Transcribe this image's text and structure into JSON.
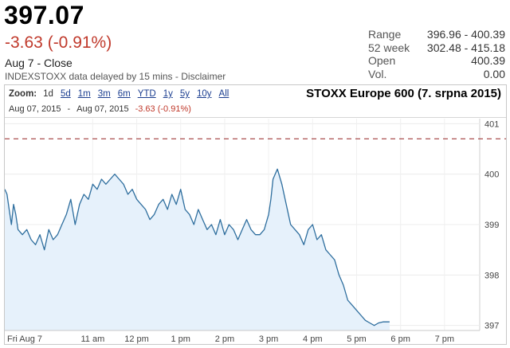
{
  "quote": {
    "price": "397.07",
    "change": "-3.63 (-0.91%)",
    "date_close": "Aug 7 - Close",
    "source": "INDEXSTOXX data delayed by 15 mins",
    "separator": " - ",
    "disclaimer": "Disclaimer"
  },
  "stats": [
    {
      "label": "Range",
      "value": "396.96 - 400.39"
    },
    {
      "label": "52 week",
      "value": "302.48 - 415.18"
    },
    {
      "label": "Open",
      "value": "400.39"
    },
    {
      "label": "Vol.",
      "value": "0.00"
    }
  ],
  "zoom": {
    "label": "Zoom:",
    "options": [
      "1d",
      "5d",
      "1m",
      "3m",
      "6m",
      "YTD",
      "1y",
      "5y",
      "10y",
      "All"
    ],
    "active": "1d"
  },
  "range": {
    "from": "Aug 07, 2015",
    "dash": "-",
    "to": "Aug 07, 2015",
    "change": "-3.63 (-0.91%)"
  },
  "colors": {
    "line": "#2e6e9e",
    "fill": "#e6f1fb",
    "prev_close": "#a03c3c",
    "negative": "#c0392b",
    "link": "#1a3d8f"
  },
  "chart_data": {
    "type": "area",
    "title": "STOXX Europe 600 (7. srpna 2015)",
    "x_tick_labels": [
      "Fri Aug 7",
      "11 am",
      "12 pm",
      "1 pm",
      "2 pm",
      "3 pm",
      "4 pm",
      "5 pm",
      "6 pm",
      "7 pm"
    ],
    "x_tick_hours": [
      10,
      11,
      12,
      13,
      14,
      15,
      16,
      17,
      18,
      19
    ],
    "y_ticks": [
      397,
      398,
      399,
      400,
      401
    ],
    "ylim": [
      396.9,
      401.1
    ],
    "xlim": [
      9.0,
      19.8
    ],
    "previous_close": 400.7,
    "series": [
      {
        "x": [
          9.0,
          9.05,
          9.1,
          9.15,
          9.2,
          9.25,
          9.3,
          9.4,
          9.5,
          9.6,
          9.7,
          9.8,
          9.9,
          10.0,
          10.1,
          10.2,
          10.3,
          10.4,
          10.5,
          10.6,
          10.7,
          10.8,
          10.9,
          11.0,
          11.1,
          11.2,
          11.3,
          11.4,
          11.5,
          11.6,
          11.7,
          11.8,
          11.9,
          12.0,
          12.1,
          12.2,
          12.3,
          12.4,
          12.5,
          12.6,
          12.7,
          12.8,
          12.9,
          13.0,
          13.1,
          13.2,
          13.3,
          13.4,
          13.5,
          13.6,
          13.7,
          13.8,
          13.9,
          14.0,
          14.1,
          14.2,
          14.3,
          14.4,
          14.5,
          14.6,
          14.7,
          14.8,
          14.9,
          15.0,
          15.05,
          15.1,
          15.2,
          15.3,
          15.4,
          15.5,
          15.6,
          15.7,
          15.8,
          15.9,
          16.0,
          16.1,
          16.2,
          16.3,
          16.4,
          16.5,
          16.6,
          16.7,
          16.8,
          16.9,
          17.0,
          17.1,
          17.2,
          17.3,
          17.4,
          17.5,
          17.6,
          17.75
        ],
        "y": [
          399.7,
          399.6,
          399.3,
          399.0,
          399.4,
          399.2,
          398.9,
          398.8,
          398.9,
          398.7,
          398.6,
          398.8,
          398.5,
          398.9,
          398.7,
          398.8,
          399.0,
          399.2,
          399.5,
          399.0,
          399.4,
          399.6,
          399.5,
          399.8,
          399.7,
          399.9,
          399.8,
          399.9,
          400.0,
          399.9,
          399.8,
          399.6,
          399.7,
          399.5,
          399.4,
          399.3,
          399.1,
          399.2,
          399.4,
          399.5,
          399.3,
          399.6,
          399.4,
          399.7,
          399.3,
          399.2,
          399.0,
          399.3,
          399.1,
          398.9,
          399.0,
          398.8,
          399.1,
          398.8,
          399.0,
          398.9,
          398.7,
          398.9,
          399.1,
          398.9,
          398.8,
          398.8,
          398.9,
          399.2,
          399.5,
          399.9,
          400.1,
          399.8,
          399.4,
          399.0,
          398.9,
          398.8,
          398.6,
          398.9,
          399.0,
          398.7,
          398.8,
          398.5,
          398.4,
          398.3,
          398.0,
          397.8,
          397.5,
          397.4,
          397.3,
          397.2,
          397.1,
          397.05,
          397.0,
          397.05,
          397.07,
          397.07
        ]
      }
    ]
  }
}
